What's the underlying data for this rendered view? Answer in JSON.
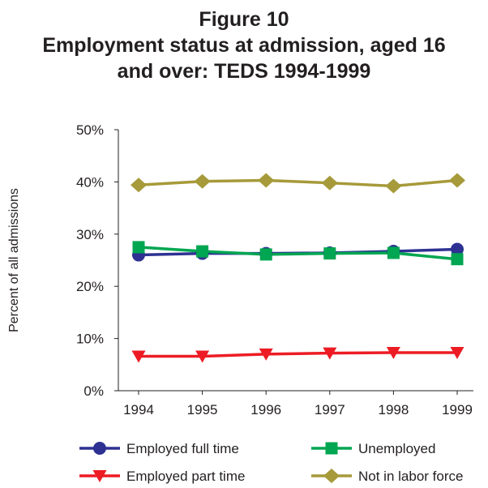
{
  "title": {
    "line1": "Figure 10",
    "line2": "Employment status at admission, aged 16",
    "line3": "and over: TEDS 1994-1999"
  },
  "chart_data": {
    "type": "line",
    "title": "Figure 10 Employment status at admission, aged 16 and over: TEDS 1994-1999",
    "xlabel": "",
    "ylabel": "Percent of all admissions",
    "x": [
      "1994",
      "1995",
      "1996",
      "1997",
      "1998",
      "1999"
    ],
    "ylim": [
      0,
      50
    ],
    "yticks": [
      "0%",
      "10%",
      "20%",
      "30%",
      "40%",
      "50%"
    ],
    "grid": false,
    "legend_position": "bottom",
    "series": [
      {
        "name": "Employed full time",
        "color": "#2e3192",
        "marker": "circle",
        "values": [
          26.0,
          26.3,
          26.3,
          26.4,
          26.7,
          27.1
        ]
      },
      {
        "name": "Unemployed",
        "color": "#00a651",
        "marker": "square",
        "values": [
          27.5,
          26.7,
          26.1,
          26.3,
          26.4,
          25.2
        ]
      },
      {
        "name": "Employed part time",
        "color": "#ed1c24",
        "marker": "triangle-down",
        "values": [
          6.6,
          6.6,
          7.0,
          7.2,
          7.3,
          7.3
        ]
      },
      {
        "name": "Not in labor force",
        "color": "#a69a3a",
        "marker": "diamond",
        "values": [
          39.4,
          40.1,
          40.3,
          39.8,
          39.2,
          40.3
        ]
      }
    ]
  }
}
